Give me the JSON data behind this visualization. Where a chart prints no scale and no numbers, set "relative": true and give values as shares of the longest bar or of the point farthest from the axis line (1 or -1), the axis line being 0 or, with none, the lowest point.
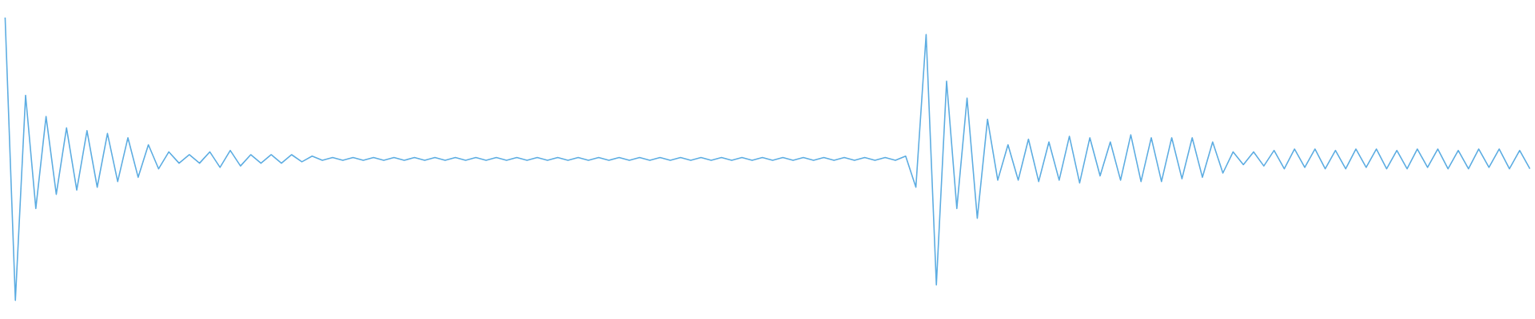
{
  "chart_data": {
    "type": "line",
    "relative": true,
    "color": "#5dade2",
    "categories": [
      null,
      null,
      null,
      null,
      null,
      null,
      null,
      null,
      null,
      null,
      null,
      null,
      null,
      null,
      null,
      null,
      null,
      null,
      null,
      null,
      null,
      null,
      null,
      null,
      null,
      null,
      null,
      null,
      null,
      null,
      null,
      null,
      null,
      null,
      null,
      null,
      null,
      null,
      null,
      null,
      null,
      null,
      null,
      null,
      null,
      null,
      null,
      null,
      null,
      null,
      null,
      null,
      null,
      null,
      null,
      null,
      null,
      null,
      null,
      null,
      null,
      null,
      null,
      null,
      null,
      null,
      null,
      null,
      null,
      null,
      null,
      null,
      null,
      null,
      null,
      null,
      null,
      null,
      null,
      null,
      null,
      null,
      null,
      null,
      null,
      null,
      null,
      null,
      null,
      null,
      null,
      null,
      null,
      null,
      null,
      null,
      null,
      null,
      null,
      null,
      null,
      null,
      null,
      null,
      null,
      null,
      null,
      null,
      null,
      null,
      null,
      null,
      null,
      null,
      null,
      null,
      null,
      null,
      null,
      null,
      null,
      null,
      null,
      null,
      null,
      null,
      null,
      null,
      null,
      null,
      null,
      null,
      null,
      null,
      null,
      null,
      null,
      null,
      null,
      null,
      null,
      null,
      null,
      null,
      null,
      null,
      null,
      null,
      null,
      null
    ],
    "values": [
      1.0,
      0.0,
      0.725,
      0.325,
      0.65,
      0.375,
      0.61,
      0.39,
      0.6,
      0.4,
      0.59,
      0.42,
      0.575,
      0.435,
      0.55,
      0.465,
      0.525,
      0.485,
      0.515,
      0.485,
      0.525,
      0.47,
      0.53,
      0.475,
      0.515,
      0.485,
      0.515,
      0.485,
      0.515,
      0.49,
      0.51,
      0.495,
      0.505,
      0.495,
      0.505,
      0.495,
      0.505,
      0.495,
      0.505,
      0.495,
      0.505,
      0.495,
      0.505,
      0.495,
      0.505,
      0.495,
      0.505,
      0.495,
      0.505,
      0.495,
      0.505,
      0.495,
      0.505,
      0.495,
      0.505,
      0.495,
      0.505,
      0.495,
      0.505,
      0.495,
      0.505,
      0.495,
      0.505,
      0.495,
      0.505,
      0.495,
      0.505,
      0.495,
      0.505,
      0.495,
      0.505,
      0.495,
      0.505,
      0.495,
      0.505,
      0.495,
      0.505,
      0.495,
      0.505,
      0.495,
      0.505,
      0.495,
      0.505,
      0.495,
      0.505,
      0.495,
      0.505,
      0.495,
      0.51,
      0.4,
      0.94,
      0.055,
      0.775,
      0.325,
      0.715,
      0.29,
      0.64,
      0.425,
      0.55,
      0.425,
      0.57,
      0.42,
      0.56,
      0.425,
      0.58,
      0.415,
      0.575,
      0.44,
      0.56,
      0.425,
      0.585,
      0.42,
      0.575,
      0.42,
      0.575,
      0.43,
      0.575,
      0.435,
      0.56,
      0.45,
      0.525,
      0.48,
      0.525,
      0.475,
      0.53,
      0.465,
      0.535,
      0.47,
      0.535,
      0.465,
      0.53,
      0.465,
      0.535,
      0.47,
      0.535,
      0.465,
      0.53,
      0.465,
      0.535,
      0.47,
      0.535,
      0.465,
      0.53,
      0.465,
      0.535,
      0.47,
      0.535,
      0.465,
      0.53,
      0.465
    ]
  }
}
